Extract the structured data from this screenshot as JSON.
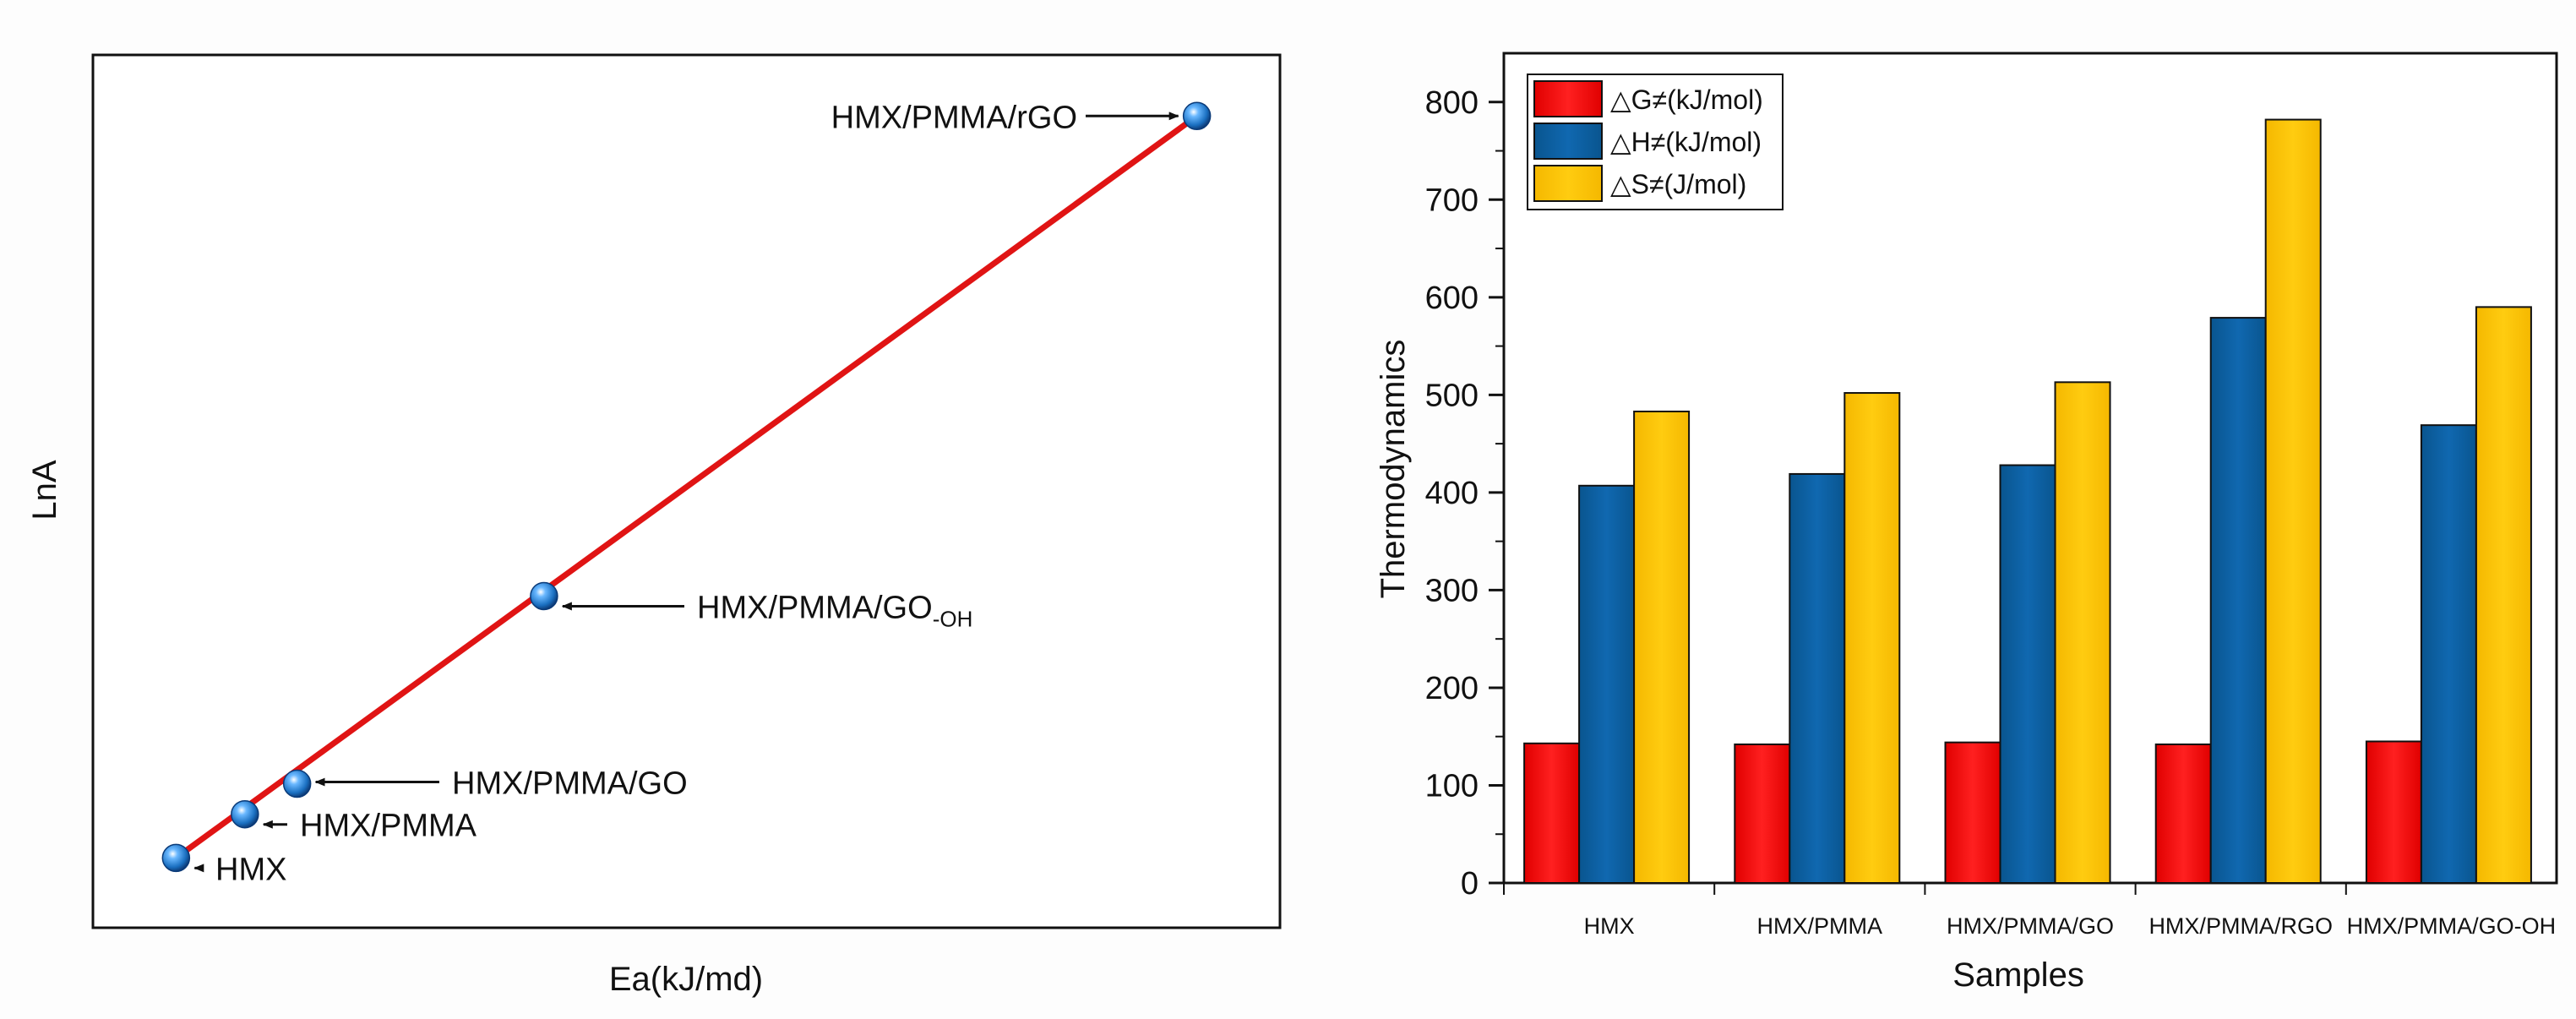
{
  "chart_data": [
    {
      "type": "scatter",
      "title": "",
      "xlabel": "Ea(kJ/md)",
      "ylabel": "LnA",
      "xlim": [
        0,
        100
      ],
      "ylim": [
        0,
        100
      ],
      "grid": false,
      "ticks_labeled": false,
      "fit_line": {
        "from": [
          7,
          8
        ],
        "to": [
          93,
          93
        ],
        "color": "#e01414"
      },
      "points": [
        {
          "name": "HMX",
          "label": "HMX",
          "x": 7,
          "y": 8
        },
        {
          "name": "HMX/PMMA",
          "label": "HMX/PMMA",
          "x": 12.8,
          "y": 13
        },
        {
          "name": "HMX/PMMA/GO",
          "label": "HMX/PMMA/GO",
          "x": 17.2,
          "y": 16.5
        },
        {
          "name": "HMX/PMMA/GO-OH",
          "label": "HMX/PMMA/GO",
          "label_sub": "-OH",
          "x": 38,
          "y": 38
        },
        {
          "name": "HMX/PMMA/rGO",
          "label": "HMX/PMMA/rGO",
          "x": 93,
          "y": 93
        }
      ],
      "point_color": "#1a6fc0"
    },
    {
      "type": "bar",
      "title": "",
      "xlabel": "Samples",
      "ylabel": "Thermodynamics",
      "ylim": [
        0,
        850
      ],
      "yticks": [
        0,
        100,
        200,
        300,
        400,
        500,
        600,
        700,
        800
      ],
      "grid": false,
      "legend_position": "top-left",
      "categories": [
        "HMX",
        "HMX/PMMA",
        "HMX/PMMA/GO",
        "HMX/PMMA/RGO",
        "HMX/PMMA/GO-OH"
      ],
      "series": [
        {
          "name": "△G≠(kJ/mol)",
          "color": "#ff0000",
          "values": [
            143,
            142,
            144,
            142,
            145
          ]
        },
        {
          "name": "△H≠(kJ/mol)",
          "color": "#0a5fa3",
          "values": [
            407,
            419,
            428,
            579,
            469
          ]
        },
        {
          "name": "△S≠(J/mol)",
          "color": "#ffc400",
          "values": [
            483,
            502,
            513,
            782,
            590
          ]
        }
      ]
    }
  ]
}
